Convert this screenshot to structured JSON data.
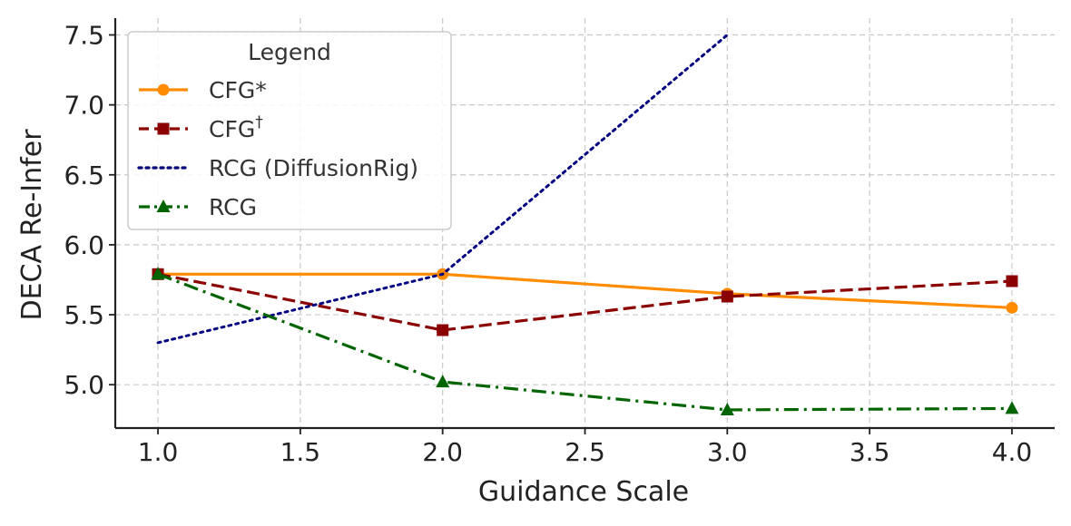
{
  "chart_data": {
    "type": "line",
    "title": "",
    "xlabel": "Guidance Scale",
    "ylabel": "DECA Re-Infer",
    "xlim": [
      0.85,
      4.15
    ],
    "ylim": [
      4.69,
      7.62
    ],
    "x_ticks": [
      1.0,
      1.5,
      2.0,
      2.5,
      3.0,
      3.5,
      4.0
    ],
    "x_tick_labels": [
      "1.0",
      "1.5",
      "2.0",
      "2.5",
      "3.0",
      "3.5",
      "4.0"
    ],
    "y_ticks": [
      5.0,
      5.5,
      6.0,
      6.5,
      7.0,
      7.5
    ],
    "y_tick_labels": [
      "5.0",
      "5.5",
      "6.0",
      "6.5",
      "7.0",
      "7.5"
    ],
    "grid": true,
    "legend": {
      "title": "Legend",
      "placement": "top-left"
    },
    "series": [
      {
        "name": "CFG*",
        "label_main": "CFG*",
        "label_sup": "",
        "x": [
          1,
          2,
          3,
          4
        ],
        "values": [
          5.79,
          5.79,
          5.65,
          5.55
        ],
        "color": "#ff8c00",
        "linestyle": "solid",
        "marker": "circle"
      },
      {
        "name": "CFG†",
        "label_main": "CFG",
        "label_sup": "†",
        "x": [
          1,
          2,
          3,
          4
        ],
        "values": [
          5.79,
          5.39,
          5.63,
          5.74
        ],
        "color": "#8b0000",
        "linestyle": "dashed",
        "marker": "square"
      },
      {
        "name": "RCG (DiffusionRig)",
        "label_main": "RCG (DiffusionRig)",
        "label_sup": "",
        "x": [
          1,
          2,
          3
        ],
        "values": [
          5.3,
          5.79,
          7.5
        ],
        "color": "#000080",
        "linestyle": "dotted",
        "marker": "none"
      },
      {
        "name": "RCG",
        "label_main": "RCG",
        "label_sup": "",
        "x": [
          1,
          2,
          3,
          4
        ],
        "values": [
          5.79,
          5.02,
          4.82,
          4.83
        ],
        "color": "#006400",
        "linestyle": "dashdot",
        "marker": "triangle"
      }
    ]
  }
}
